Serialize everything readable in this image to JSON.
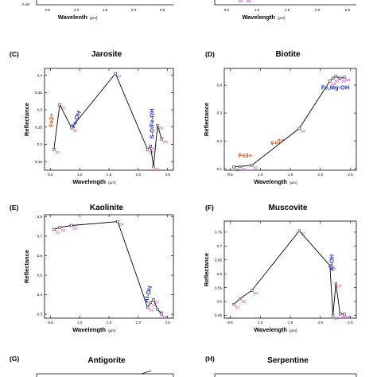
{
  "figure": {
    "top_strip": {
      "xlabel": "Wavelenth",
      "unit": "(μm)",
      "ylabel_visible_tick": "0.10",
      "x_ticks": [
        "0.5",
        "1.0",
        "1.5",
        "2.0",
        "2.5"
      ],
      "left_x_ticks": [
        "0.5",
        "1.0",
        "1.5",
        "2.0",
        "2.5"
      ],
      "right_xlabel": "Wavelength",
      "right_unit": "(μm)",
      "right_x_ticks": [
        "0.5",
        "1.0",
        "1.5",
        "2.0",
        "2.5"
      ],
      "right_band_labels": [
        "B5",
        "B6"
      ]
    },
    "bottom_strip": [
      {
        "letter": "(G)",
        "title": "Antigorite"
      },
      {
        "letter": "(H)",
        "title": "Serpentine"
      }
    ]
  },
  "chart_data": [
    {
      "type": "line",
      "letter": "(C)",
      "title": "Jarosite",
      "xlabel": "Wavelength",
      "xunit": "(μm)",
      "ylabel": "Reflectance",
      "xlim": [
        0.4,
        2.6
      ],
      "ylim": [
        0.125,
        0.42
      ],
      "x_ticks": [
        0.5,
        1.0,
        1.5,
        2.0,
        2.5
      ],
      "x_tick_labels": [
        "0.5",
        "1.0",
        "1.5",
        "2.0",
        "2.5"
      ],
      "y_ticks": [
        0.15,
        0.2,
        0.25,
        0.3,
        0.35,
        0.4
      ],
      "y_tick_labels": [
        "0.15",
        "0.2",
        "0.25",
        "0.3",
        "0.35",
        "0.4"
      ],
      "line_color": "#000000",
      "points": [
        {
          "x": 0.56,
          "y": 0.185,
          "label": "B1"
        },
        {
          "x": 0.66,
          "y": 0.315,
          "label": "B2"
        },
        {
          "x": 0.86,
          "y": 0.248,
          "label": "B3"
        },
        {
          "x": 1.61,
          "y": 0.405,
          "label": "B4"
        },
        {
          "x": 2.16,
          "y": 0.185,
          "label": "B5"
        },
        {
          "x": 2.21,
          "y": 0.195,
          "label": "B6"
        },
        {
          "x": 2.26,
          "y": 0.135,
          "label": "B7"
        },
        {
          "x": 2.33,
          "y": 0.255,
          "label": "B8"
        },
        {
          "x": 2.4,
          "y": 0.215,
          "label": "B9"
        }
      ],
      "annotations": [
        {
          "text": "Fe2+",
          "color": "#e8500f",
          "x": 0.55,
          "y": 0.27,
          "rotate": -90
        },
        {
          "text": "Fe-OH",
          "color": "#1a2ccc",
          "x": 0.97,
          "y": 0.27,
          "rotate": -70
        },
        {
          "text": "S-O/Fe-OH",
          "color": "#1a2ccc",
          "x": 2.27,
          "y": 0.26,
          "rotate": -90
        }
      ]
    },
    {
      "type": "line",
      "letter": "(D)",
      "title": "Biotite",
      "xlabel": "Wavelength",
      "xunit": "(μm)",
      "ylabel": "Reflectance",
      "xlim": [
        0.4,
        2.6
      ],
      "ylim": [
        0.095,
        0.46
      ],
      "x_ticks": [
        0.5,
        1.0,
        1.5,
        2.0,
        2.5
      ],
      "x_tick_labels": [
        "0.5",
        "1.0",
        "1.5",
        "2.0",
        "2.5"
      ],
      "y_ticks": [
        0.1,
        0.2,
        0.3,
        0.4
      ],
      "y_tick_labels": [
        "0.1",
        "0.2",
        "0.3",
        "0.4"
      ],
      "line_color": "#000000",
      "points": [
        {
          "x": 0.56,
          "y": 0.107,
          "label": "B1"
        },
        {
          "x": 0.66,
          "y": 0.108,
          "label": "B2"
        },
        {
          "x": 0.86,
          "y": 0.113,
          "label": "B3"
        },
        {
          "x": 1.65,
          "y": 0.245,
          "label": "B4"
        },
        {
          "x": 2.16,
          "y": 0.415,
          "label": "B5"
        },
        {
          "x": 2.21,
          "y": 0.425,
          "label": "B6"
        },
        {
          "x": 2.26,
          "y": 0.432,
          "label": "B7"
        },
        {
          "x": 2.33,
          "y": 0.425,
          "label": "B8"
        },
        {
          "x": 2.4,
          "y": 0.428,
          "label": "B9"
        }
      ],
      "annotations": [
        {
          "text": "Fe3+",
          "color": "#e8500f",
          "x": 0.75,
          "y": 0.14,
          "rotate": 0
        },
        {
          "text": "Fe2+",
          "color": "#e8500f",
          "x": 1.3,
          "y": 0.19,
          "rotate": -18
        },
        {
          "text": "Fe,Mg-OH",
          "color": "#1a2ccc",
          "x": 2.25,
          "y": 0.385,
          "rotate": 0
        }
      ]
    },
    {
      "type": "line",
      "letter": "(E)",
      "title": "Kaolinite",
      "xlabel": "Wavelength",
      "xunit": "(μm)",
      "ylabel": "Reflectance",
      "xlim": [
        0.4,
        2.6
      ],
      "ylim": [
        0.28,
        0.81
      ],
      "x_ticks": [
        0.5,
        1.0,
        1.5,
        2.0,
        2.5
      ],
      "x_tick_labels": [
        "0.5",
        "1.0",
        "1.5",
        "2.0",
        "2.5"
      ],
      "y_ticks": [
        0.3,
        0.4,
        0.5,
        0.6,
        0.7,
        0.8
      ],
      "y_tick_labels": [
        "0.3",
        "0.4",
        "0.5",
        "0.6",
        "0.7",
        "0.8"
      ],
      "line_color": "#000000",
      "points": [
        {
          "x": 0.56,
          "y": 0.735,
          "label": "B1"
        },
        {
          "x": 0.66,
          "y": 0.745,
          "label": "B2"
        },
        {
          "x": 0.86,
          "y": 0.755,
          "label": "B3"
        },
        {
          "x": 1.65,
          "y": 0.775,
          "label": "B4"
        },
        {
          "x": 2.16,
          "y": 0.335,
          "label": "B5"
        },
        {
          "x": 2.21,
          "y": 0.36,
          "label": "B6"
        },
        {
          "x": 2.26,
          "y": 0.375,
          "label": "B7"
        },
        {
          "x": 2.33,
          "y": 0.325,
          "label": "B8"
        },
        {
          "x": 2.4,
          "y": 0.3,
          "label": "B9"
        }
      ],
      "annotations": [
        {
          "text": "Al-OH",
          "color": "#1a2ccc",
          "x": 2.2,
          "y": 0.4,
          "rotate": -75
        }
      ]
    },
    {
      "type": "line",
      "letter": "(F)",
      "title": "Muscovite",
      "xlabel": "Wavelength",
      "xunit": "(μm)",
      "ylabel": "Reflectance",
      "xlim": [
        0.4,
        2.6
      ],
      "ylim": [
        0.44,
        0.79
      ],
      "x_ticks": [
        0.5,
        1.0,
        1.5,
        2.0,
        2.5
      ],
      "x_tick_labels": [
        "0.5",
        "1.0",
        "1.5",
        "2.0",
        "2.5"
      ],
      "y_ticks": [
        0.45,
        0.5,
        0.55,
        0.6,
        0.65,
        0.7,
        0.75
      ],
      "y_tick_labels": [
        "0.45",
        "0.5",
        "0.55",
        "0.6",
        "0.65",
        "0.7",
        "0.75"
      ],
      "line_color": "#000000",
      "points": [
        {
          "x": 0.56,
          "y": 0.49,
          "label": "B1"
        },
        {
          "x": 0.66,
          "y": 0.51,
          "label": "B2"
        },
        {
          "x": 0.86,
          "y": 0.54,
          "label": "B3"
        },
        {
          "x": 1.65,
          "y": 0.755,
          "label": "B4"
        },
        {
          "x": 2.16,
          "y": 0.63,
          "label": "B5"
        },
        {
          "x": 2.21,
          "y": 0.45,
          "label": "B6"
        },
        {
          "x": 2.26,
          "y": 0.565,
          "label": "B7"
        },
        {
          "x": 2.33,
          "y": 0.455,
          "label": "B8"
        },
        {
          "x": 2.4,
          "y": 0.455,
          "label": "B9"
        }
      ],
      "annotations": [
        {
          "text": "Al-OH",
          "color": "#1a2ccc",
          "x": 2.22,
          "y": 0.64,
          "rotate": -90
        }
      ]
    }
  ]
}
